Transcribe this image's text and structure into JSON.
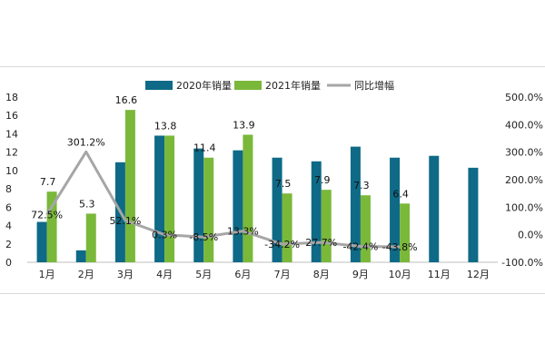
{
  "chart_data": {
    "type": "bar",
    "categories": [
      "1月",
      "2月",
      "3月",
      "4月",
      "5月",
      "6月",
      "7月",
      "8月",
      "9月",
      "10月",
      "11月",
      "12月"
    ],
    "series": [
      {
        "name": "2020年销量",
        "kind": "bar",
        "axis": "left",
        "color": "#0e6a86",
        "values": [
          4.4,
          1.3,
          10.9,
          13.8,
          12.4,
          12.2,
          11.4,
          11.0,
          12.6,
          11.4,
          11.6,
          10.3
        ],
        "labels": [
          "",
          "",
          "",
          "",
          "",
          "",
          "",
          "",
          "",
          "",
          "",
          ""
        ]
      },
      {
        "name": "2021年销量",
        "kind": "bar",
        "axis": "left",
        "color": "#7ab83a",
        "values": [
          7.7,
          5.3,
          16.6,
          13.8,
          11.4,
          13.9,
          7.5,
          7.9,
          7.3,
          6.4,
          null,
          null
        ],
        "labels": [
          "7.7",
          "5.3",
          "16.6",
          "13.8",
          "11.4",
          "13.9",
          "7.5",
          "7.9",
          "7.3",
          "6.4",
          "",
          ""
        ]
      },
      {
        "name": "同比增幅",
        "kind": "line",
        "axis": "right",
        "color": "#a6a6a6",
        "values": [
          72.5,
          301.2,
          52.1,
          0.3,
          -8.5,
          13.3,
          -34.2,
          -27.7,
          -42.4,
          -43.8,
          null,
          null
        ],
        "labels": [
          "72.5%",
          "301.2%",
          "52.1%",
          "0.3%",
          "-8.5%",
          "13.3%",
          "-34.2%",
          "27.7%",
          "-42.4%",
          "-43.8%",
          "",
          ""
        ]
      }
    ],
    "y_left": {
      "min": 0,
      "max": 18,
      "step": 2,
      "ticks": [
        "0",
        "2",
        "4",
        "6",
        "8",
        "10",
        "12",
        "14",
        "16",
        "18"
      ]
    },
    "y_right": {
      "min": -100,
      "max": 500,
      "step": 100,
      "ticks": [
        "-100.0%",
        "0.0%",
        "100.0%",
        "200.0%",
        "300.0%",
        "400.0%",
        "500.0%"
      ]
    },
    "legend": {
      "placement": "top-center"
    },
    "grid": false
  }
}
